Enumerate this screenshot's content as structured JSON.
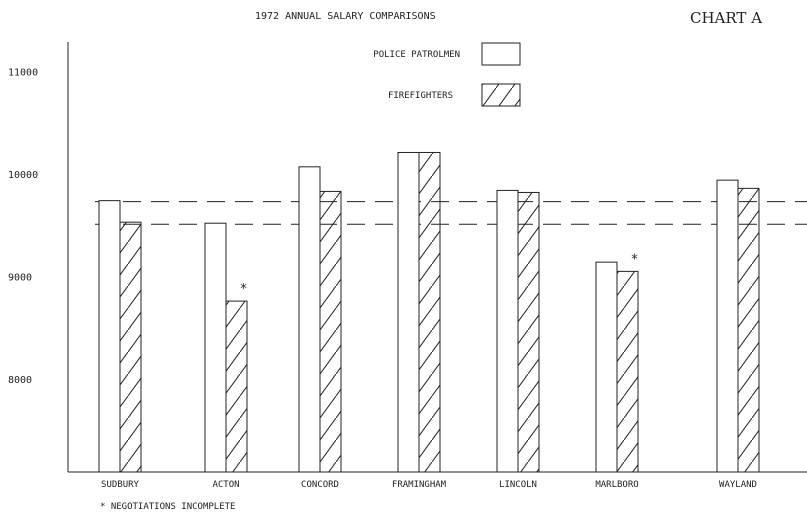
{
  "header": {
    "title": "1972 ANNUAL SALARY COMPARISONS",
    "chart_label": "CHART A"
  },
  "footnote": "* NEGOTIATIONS INCOMPLETE",
  "chart_data": {
    "type": "bar",
    "title": "1972 ANNUAL SALARY COMPARISONS",
    "xlabel": "",
    "ylabel": "",
    "categories": [
      "SUDBURY",
      "ACTON",
      "CONCORD",
      "FRAMINGHAM",
      "LINCOLN",
      "MARLBORO",
      "WAYLAND"
    ],
    "series": [
      {
        "name": "POLICE PATROLMEN",
        "pattern": "open",
        "values": [
          9740,
          9520,
          10070,
          10210,
          9840,
          9140,
          9940
        ]
      },
      {
        "name": "FIREFIGHTERS",
        "pattern": "hatched",
        "values": [
          9530,
          8760,
          9830,
          10210,
          9820,
          9050,
          9860
        ]
      }
    ],
    "annotations": [
      {
        "category": "ACTON",
        "series": "FIREFIGHTERS",
        "text": "*"
      },
      {
        "category": "MARLBORO",
        "series": "FIREFIGHTERS",
        "text": "*"
      }
    ],
    "y_ticks": [
      8000,
      9000,
      10000,
      11000
    ],
    "ylim": [
      7100,
      11300
    ],
    "reference_lines": [
      9730,
      9510
    ],
    "grid": false,
    "legend_position": "top-center",
    "colors": {
      "ink": "#222222",
      "background": "#ffffff"
    }
  }
}
